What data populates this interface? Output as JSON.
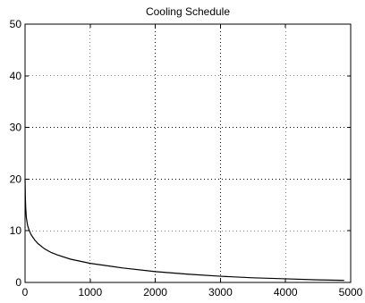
{
  "chart_data": {
    "type": "line",
    "title": "Cooling Schedule",
    "xlabel": "",
    "ylabel": "",
    "xlim": [
      0,
      5000
    ],
    "ylim": [
      0,
      50
    ],
    "x_ticks": [
      0,
      1000,
      2000,
      3000,
      4000,
      5000
    ],
    "y_ticks": [
      0,
      10,
      20,
      30,
      40,
      50
    ],
    "grid": true,
    "series": [
      {
        "color": "#000000",
        "x": [
          0,
          5,
          10,
          20,
          40,
          60,
          80,
          100,
          150,
          200,
          300,
          400,
          500,
          700,
          1000,
          1500,
          2000,
          2500,
          3000,
          3500,
          4000,
          4500,
          4900
        ],
        "y": [
          20,
          16.5,
          14.5,
          12.5,
          11.0,
          10.2,
          9.6,
          9.1,
          8.2,
          7.5,
          6.5,
          5.8,
          5.3,
          4.5,
          3.7,
          2.8,
          2.1,
          1.6,
          1.2,
          0.9,
          0.7,
          0.5,
          0.4
        ]
      }
    ]
  }
}
